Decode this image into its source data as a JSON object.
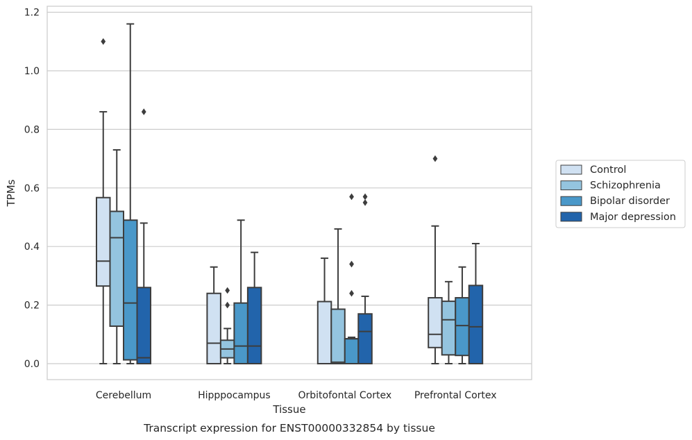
{
  "chart_data": {
    "type": "box",
    "title": "",
    "caption": "Transcript expression for ENST00000332854 by tissue",
    "xlabel": "Tissue",
    "ylabel": "TPMs",
    "ylim": [
      -0.055,
      1.22
    ],
    "yticks": [
      0.0,
      0.2,
      0.4,
      0.6,
      0.8,
      1.0,
      1.2
    ],
    "ytick_labels": [
      "0.0",
      "0.2",
      "0.4",
      "0.6",
      "0.8",
      "1.0",
      "1.2"
    ],
    "grid": "horizontal",
    "legend_position": "right",
    "categories": [
      "Cerebellum",
      "Hipppocampus",
      "Orbitofontal Cortex",
      "Prefrontal Cortex"
    ],
    "series": [
      {
        "name": "Control",
        "color": "#d0e1f2",
        "boxes": [
          {
            "whislo": 0.0,
            "q1": 0.265,
            "med": 0.35,
            "q3": 0.567,
            "whishi": 0.86,
            "fliers": [
              1.1
            ]
          },
          {
            "whislo": 0.0,
            "q1": 0.0,
            "med": 0.07,
            "q3": 0.24,
            "whishi": 0.33,
            "fliers": []
          },
          {
            "whislo": 0.0,
            "q1": 0.0,
            "med": 0.0,
            "q3": 0.212,
            "whishi": 0.36,
            "fliers": []
          },
          {
            "whislo": 0.0,
            "q1": 0.055,
            "med": 0.1,
            "q3": 0.225,
            "whishi": 0.47,
            "fliers": [
              0.7
            ]
          }
        ]
      },
      {
        "name": "Schizophrenia",
        "color": "#94c4df",
        "boxes": [
          {
            "whislo": 0.0,
            "q1": 0.128,
            "med": 0.43,
            "q3": 0.52,
            "whishi": 0.73,
            "fliers": []
          },
          {
            "whislo": 0.0,
            "q1": 0.02,
            "med": 0.05,
            "q3": 0.08,
            "whishi": 0.12,
            "fliers": [
              0.2,
              0.25
            ]
          },
          {
            "whislo": 0.0,
            "q1": 0.0,
            "med": 0.005,
            "q3": 0.186,
            "whishi": 0.46,
            "fliers": []
          },
          {
            "whislo": 0.0,
            "q1": 0.03,
            "med": 0.15,
            "q3": 0.213,
            "whishi": 0.28,
            "fliers": []
          }
        ]
      },
      {
        "name": "Bipolar disorder",
        "color": "#4a98c9",
        "boxes": [
          {
            "whislo": 0.0,
            "q1": 0.013,
            "med": 0.207,
            "q3": 0.49,
            "whishi": 1.16,
            "fliers": []
          },
          {
            "whislo": 0.0,
            "q1": 0.0,
            "med": 0.06,
            "q3": 0.207,
            "whishi": 0.49,
            "fliers": []
          },
          {
            "whislo": 0.0,
            "q1": 0.0,
            "med": 0.085,
            "q3": 0.085,
            "whishi": 0.09,
            "fliers": [
              0.24,
              0.34,
              0.57
            ]
          },
          {
            "whislo": 0.0,
            "q1": 0.028,
            "med": 0.13,
            "q3": 0.225,
            "whishi": 0.33,
            "fliers": []
          }
        ]
      },
      {
        "name": "Major depression",
        "color": "#2264ab",
        "boxes": [
          {
            "whislo": 0.0,
            "q1": 0.0,
            "med": 0.02,
            "q3": 0.26,
            "whishi": 0.48,
            "fliers": [
              0.86
            ]
          },
          {
            "whislo": 0.0,
            "q1": 0.0,
            "med": 0.06,
            "q3": 0.26,
            "whishi": 0.38,
            "fliers": []
          },
          {
            "whislo": 0.0,
            "q1": 0.0,
            "med": 0.11,
            "q3": 0.17,
            "whishi": 0.23,
            "fliers": [
              0.55,
              0.57
            ]
          },
          {
            "whislo": 0.0,
            "q1": 0.0,
            "med": 0.126,
            "q3": 0.267,
            "whishi": 0.41,
            "fliers": []
          }
        ]
      }
    ]
  }
}
